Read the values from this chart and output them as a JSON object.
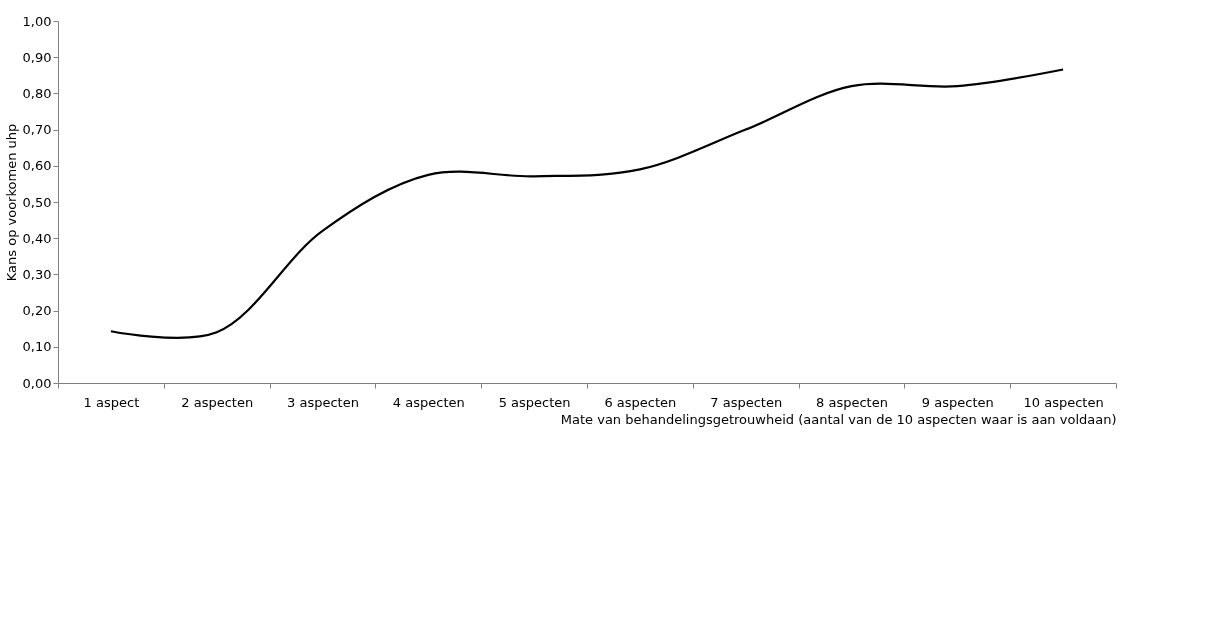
{
  "chart_data": {
    "type": "line",
    "xlabel": "Mate van behandelingsgetrouwheid (aantal van de 10 aspecten waar is aan voldaan)",
    "ylabel": "Kans op voorkomen uhp",
    "categories": [
      "1 aspect",
      "2 aspecten",
      "3 aspecten",
      "4 aspecten",
      "5 aspecten",
      "6 aspecten",
      "7 aspecten",
      "8 aspecten",
      "9 aspecten",
      "10 aspecten"
    ],
    "series": [
      {
        "color": "#000000",
        "values": [
          0.143,
          0.14,
          0.42,
          0.575,
          0.571,
          0.59,
          0.7,
          0.82,
          0.82,
          0.866
        ]
      }
    ],
    "ylim": [
      0,
      1
    ],
    "yticks": [
      {
        "value": 0,
        "label": "0,00"
      },
      {
        "value": 0.1,
        "label": "0,10"
      },
      {
        "value": 0.2,
        "label": "0,20"
      },
      {
        "value": 0.3,
        "label": "0,30"
      },
      {
        "value": 0.4,
        "label": "0,40"
      },
      {
        "value": 0.5,
        "label": "0,50"
      },
      {
        "value": 0.6,
        "label": "0,60"
      },
      {
        "value": 0.7,
        "label": "0,70"
      },
      {
        "value": 0.8,
        "label": "0,80"
      },
      {
        "value": 0.9,
        "label": "0,90"
      },
      {
        "value": 1,
        "label": "1,00"
      }
    ],
    "grid": false,
    "marker": "none",
    "line_style": "solid"
  }
}
